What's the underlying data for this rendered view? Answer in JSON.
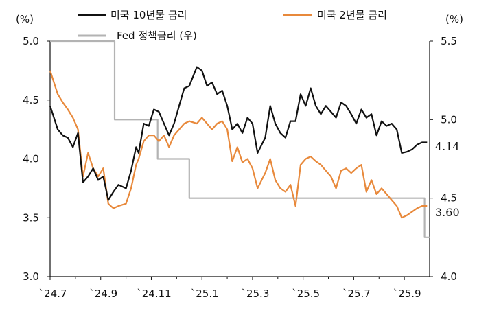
{
  "chart_data": {
    "type": "line",
    "left_unit": "(%)",
    "right_unit": "(%)",
    "left_axis": {
      "min": 3.0,
      "max": 5.0,
      "ticks": [
        "3.0",
        "3.5",
        "4.0",
        "4.5",
        "5.0"
      ]
    },
    "right_axis": {
      "min": 4.0,
      "max": 5.5,
      "ticks": [
        "4.0",
        "4.5",
        "5.0",
        "5.5"
      ]
    },
    "x_tick_labels": [
      "`24.7",
      "`24.9",
      "`24.11",
      "`25.1",
      "`25.3",
      "`25.5",
      "`25.7",
      "`25.9"
    ],
    "x_range_months": [
      0,
      15.0
    ],
    "legend": [
      "미국 10년물 금리",
      "미국 2년물 금리",
      "Fed 정책금리 (우)"
    ],
    "end_labels": {
      "ten_year": "4.14",
      "two_year": "3.60"
    },
    "series": [
      {
        "name": "미국 10년물 금리",
        "axis": "left",
        "color": "#111111",
        "x": [
          0.0,
          0.3,
          0.5,
          0.7,
          0.9,
          1.1,
          1.3,
          1.5,
          1.7,
          1.9,
          2.1,
          2.3,
          2.5,
          2.7,
          3.0,
          3.2,
          3.4,
          3.5,
          3.7,
          3.9,
          4.1,
          4.3,
          4.5,
          4.7,
          4.9,
          5.1,
          5.3,
          5.5,
          5.8,
          6.0,
          6.2,
          6.4,
          6.6,
          6.8,
          7.0,
          7.2,
          7.4,
          7.6,
          7.8,
          8.0,
          8.2,
          8.5,
          8.7,
          8.9,
          9.1,
          9.3,
          9.5,
          9.7,
          9.9,
          10.1,
          10.3,
          10.5,
          10.7,
          10.9,
          11.1,
          11.3,
          11.5,
          11.7,
          11.9,
          12.1,
          12.3,
          12.5,
          12.7,
          12.9,
          13.1,
          13.3,
          13.5,
          13.7,
          13.9,
          14.1,
          14.3,
          14.5,
          14.7,
          14.9
        ],
        "values": [
          4.45,
          4.25,
          4.2,
          4.18,
          4.1,
          4.22,
          3.8,
          3.85,
          3.92,
          3.82,
          3.85,
          3.65,
          3.72,
          3.78,
          3.75,
          3.9,
          4.1,
          4.05,
          4.3,
          4.28,
          4.42,
          4.4,
          4.3,
          4.2,
          4.3,
          4.45,
          4.6,
          4.62,
          4.78,
          4.75,
          4.62,
          4.65,
          4.55,
          4.58,
          4.45,
          4.25,
          4.3,
          4.22,
          4.35,
          4.3,
          4.05,
          4.18,
          4.45,
          4.3,
          4.22,
          4.18,
          4.32,
          4.32,
          4.55,
          4.45,
          4.6,
          4.45,
          4.38,
          4.45,
          4.4,
          4.35,
          4.48,
          4.45,
          4.38,
          4.3,
          4.42,
          4.35,
          4.38,
          4.2,
          4.32,
          4.28,
          4.3,
          4.25,
          4.05,
          4.06,
          4.08,
          4.12,
          4.14,
          4.14
        ]
      },
      {
        "name": "미국 2년물 금리",
        "axis": "left",
        "color": "#E8893B",
        "x": [
          0.0,
          0.3,
          0.5,
          0.7,
          0.9,
          1.1,
          1.3,
          1.5,
          1.7,
          1.9,
          2.1,
          2.3,
          2.5,
          2.7,
          3.0,
          3.2,
          3.4,
          3.5,
          3.7,
          3.9,
          4.1,
          4.3,
          4.5,
          4.7,
          4.9,
          5.1,
          5.3,
          5.5,
          5.8,
          6.0,
          6.2,
          6.4,
          6.6,
          6.8,
          7.0,
          7.2,
          7.4,
          7.6,
          7.8,
          8.0,
          8.2,
          8.5,
          8.7,
          8.9,
          9.1,
          9.3,
          9.5,
          9.7,
          9.9,
          10.1,
          10.3,
          10.5,
          10.7,
          10.9,
          11.1,
          11.3,
          11.5,
          11.7,
          11.9,
          12.1,
          12.3,
          12.5,
          12.7,
          12.9,
          13.1,
          13.3,
          13.5,
          13.7,
          13.9,
          14.1,
          14.3,
          14.5,
          14.7,
          14.9
        ],
        "values": [
          4.75,
          4.55,
          4.48,
          4.42,
          4.35,
          4.25,
          3.85,
          4.05,
          3.92,
          3.85,
          3.92,
          3.62,
          3.58,
          3.6,
          3.62,
          3.75,
          3.95,
          4.0,
          4.15,
          4.2,
          4.2,
          4.15,
          4.2,
          4.1,
          4.2,
          4.25,
          4.3,
          4.32,
          4.3,
          4.35,
          4.3,
          4.25,
          4.3,
          4.32,
          4.25,
          3.98,
          4.1,
          3.97,
          4.0,
          3.92,
          3.75,
          3.88,
          4.0,
          3.82,
          3.75,
          3.72,
          3.78,
          3.6,
          3.95,
          4.0,
          4.02,
          3.98,
          3.95,
          3.9,
          3.85,
          3.75,
          3.9,
          3.92,
          3.88,
          3.92,
          3.95,
          3.72,
          3.82,
          3.7,
          3.75,
          3.7,
          3.65,
          3.6,
          3.5,
          3.52,
          3.55,
          3.58,
          3.6,
          3.6
        ]
      },
      {
        "name": "Fed 정책금리 (우)",
        "axis": "right",
        "color": "#B3B3B3",
        "x": [
          0.0,
          2.55,
          2.55,
          4.25,
          4.25,
          5.5,
          5.5,
          15.0
        ],
        "values": [
          5.5,
          5.5,
          5.0,
          5.0,
          4.75,
          4.75,
          4.5,
          4.5
        ]
      }
    ],
    "fed_extra_step": {
      "x": [
        14.8,
        14.8,
        15.0
      ],
      "values": [
        4.5,
        4.25,
        4.25
      ]
    }
  }
}
